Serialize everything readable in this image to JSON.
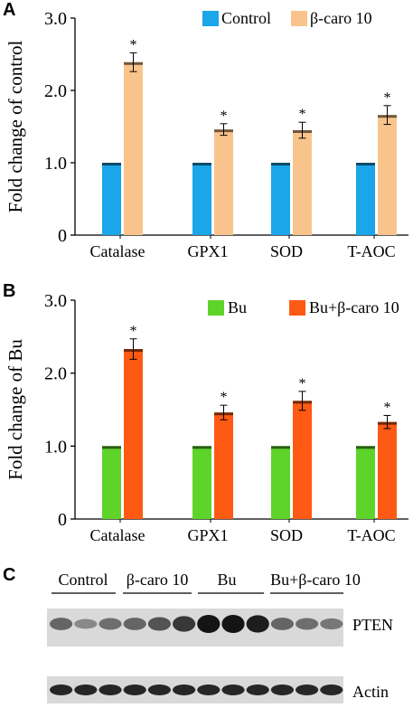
{
  "panels": [
    {
      "letter": "A",
      "chart_data": {
        "type": "bar",
        "categories": [
          "Catalase",
          "GPX1",
          "SOD",
          "T-AOC"
        ],
        "series": [
          {
            "name": "Control",
            "values": [
              1.0,
              1.0,
              1.0,
              1.0
            ],
            "color": "#1aa6e8"
          },
          {
            "name": "β-caro 10",
            "values": [
              2.39,
              1.46,
              1.45,
              1.66
            ],
            "errors": [
              0.13,
              0.08,
              0.11,
              0.13
            ],
            "color": "#f9c48c"
          }
        ],
        "significance": [
          "*",
          "*",
          "*",
          "*"
        ],
        "ylabel": "Fold change of control",
        "ylim": [
          0,
          3.0
        ],
        "yticks": [
          "0",
          "1.0",
          "2.0",
          "3.0"
        ],
        "legend": "top-right",
        "grid": false
      }
    },
    {
      "letter": "B",
      "chart_data": {
        "type": "bar",
        "categories": [
          "Catalase",
          "GPX1",
          "SOD",
          "T-AOC"
        ],
        "series": [
          {
            "name": "Bu",
            "values": [
              1.0,
              1.0,
              1.0,
              1.0
            ],
            "color": "#5ed32a"
          },
          {
            "name": "Bu+β-caro 10",
            "values": [
              2.33,
              1.46,
              1.62,
              1.33
            ],
            "errors": [
              0.14,
              0.1,
              0.13,
              0.09
            ],
            "color": "#ff5a14"
          }
        ],
        "significance": [
          "*",
          "*",
          "*",
          "*"
        ],
        "ylabel": "Fold change of Bu",
        "ylim": [
          0,
          3.0
        ],
        "yticks": [
          "0",
          "1.0",
          "2.0",
          "3.0"
        ],
        "legend": "top-right",
        "grid": false
      }
    }
  ],
  "blot": {
    "letter": "C",
    "groups": [
      "Control",
      "β-caro 10",
      "Bu",
      "Bu+β-caro 10"
    ],
    "bands": [
      "PTEN",
      "Actin"
    ],
    "pten_intensity": [
      0.55,
      0.35,
      0.5,
      0.55,
      0.65,
      0.8,
      1.0,
      1.0,
      0.95,
      0.55,
      0.5,
      0.45
    ],
    "actin_intensity": [
      0.9,
      0.9,
      0.9,
      0.9,
      0.9,
      0.9,
      0.9,
      0.9,
      0.9,
      0.9,
      0.9,
      0.9
    ]
  }
}
